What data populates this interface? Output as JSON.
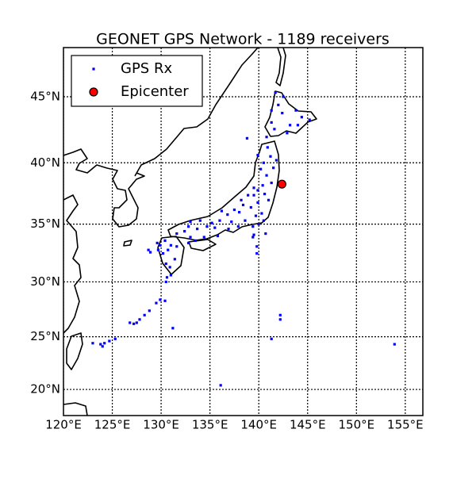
{
  "chart_data": {
    "type": "scatter",
    "title": "GEONET GPS Network - 1189 receivers",
    "projection": "mercator",
    "grid": true,
    "legend": "upper left",
    "xlim": [
      120,
      156.8
    ],
    "ylim": [
      17.46,
      48.46
    ],
    "xticks": [
      {
        "value": 120,
        "label": "120°E"
      },
      {
        "value": 125,
        "label": "125°E"
      },
      {
        "value": 130,
        "label": "130°E"
      },
      {
        "value": 135,
        "label": "135°E"
      },
      {
        "value": 140,
        "label": "140°E"
      },
      {
        "value": 145,
        "label": "145°E"
      },
      {
        "value": 150,
        "label": "150°E"
      },
      {
        "value": 155,
        "label": "155°E"
      }
    ],
    "yticks": [
      {
        "value": 20,
        "label": "20°N"
      },
      {
        "value": 25,
        "label": "25°N"
      },
      {
        "value": 30,
        "label": "30°N"
      },
      {
        "value": 35,
        "label": "35°N"
      },
      {
        "value": 40,
        "label": "40°N"
      },
      {
        "value": 45,
        "label": "45°N"
      }
    ],
    "series": [
      {
        "name": "GPS Rx",
        "color": "#0000ff",
        "marker": "square",
        "x": [
          141.3,
          142.4,
          143.2,
          144.4,
          141.7,
          142.0,
          143.8,
          145.2,
          140.8,
          141.6,
          142.9,
          141.3,
          142.5,
          144.0,
          140.9,
          141.2,
          140.5,
          141.5,
          140.8,
          141.3,
          140.4,
          140.6,
          141.0,
          139.9,
          140.2,
          141.8,
          139.9,
          139.7,
          140.3,
          139.2,
          138.4,
          138.2,
          137.5,
          138.6,
          137.2,
          136.8,
          136.2,
          139.9,
          140.5,
          139.4,
          137.9,
          136.9,
          139.5,
          138.9,
          135.5,
          135.2,
          135.8,
          134.7,
          134.0,
          133.0,
          132.4,
          131.6,
          132.8,
          133.7,
          136.0,
          133.5,
          134.4,
          132.8,
          133.0,
          130.4,
          131.0,
          130.7,
          131.4,
          130.5,
          130.2,
          129.9,
          131.6,
          130.9,
          129.7,
          130.6,
          130.5,
          131.0,
          129.9,
          130.4,
          129.5,
          128.8,
          128.3,
          127.8,
          127.5,
          127.2,
          126.8,
          125.3,
          124.2,
          123.8,
          124.0,
          123.0,
          124.7,
          131.2,
          136.1,
          142.2,
          142.2,
          141.3,
          153.9,
          139.8,
          139.8,
          139.5,
          139.4,
          138.8,
          138.0,
          140.7,
          139.5,
          140.0,
          129.6,
          128.9,
          128.7
        ],
        "y": [
          43.1,
          43.8,
          42.9,
          43.5,
          45.3,
          44.4,
          44.0,
          43.3,
          42.0,
          42.6,
          42.3,
          44.0,
          45.0,
          42.9,
          41.2,
          40.5,
          40.0,
          39.6,
          39.0,
          38.4,
          38.2,
          37.5,
          37.0,
          37.8,
          39.5,
          40.2,
          40.6,
          35.7,
          35.9,
          36.4,
          36.6,
          37.0,
          36.2,
          35.3,
          35.2,
          35.8,
          36.1,
          36.8,
          35.3,
          34.8,
          34.8,
          34.6,
          38.0,
          37.4,
          34.7,
          35.1,
          34.0,
          34.8,
          35.3,
          35.2,
          34.4,
          34.2,
          34.8,
          34.6,
          35.3,
          33.6,
          33.9,
          33.4,
          33.9,
          33.6,
          33.2,
          32.8,
          32.0,
          31.6,
          32.5,
          33.2,
          33.1,
          31.3,
          32.8,
          30.4,
          30.0,
          30.6,
          28.4,
          28.3,
          28.1,
          27.4,
          27.0,
          26.6,
          26.3,
          26.2,
          26.3,
          24.8,
          24.4,
          24.3,
          24.1,
          24.4,
          24.6,
          25.8,
          20.4,
          27.0,
          26.6,
          24.8,
          24.3,
          33.1,
          32.5,
          34.1,
          33.9,
          41.9,
          36.0,
          34.2,
          37.4,
          35.0,
          33.4,
          32.6,
          32.8
        ]
      },
      {
        "name": "Epicenter",
        "color": "#ff0000",
        "marker": "circle",
        "x": [
          142.37
        ],
        "y": [
          38.3
        ]
      }
    ]
  }
}
